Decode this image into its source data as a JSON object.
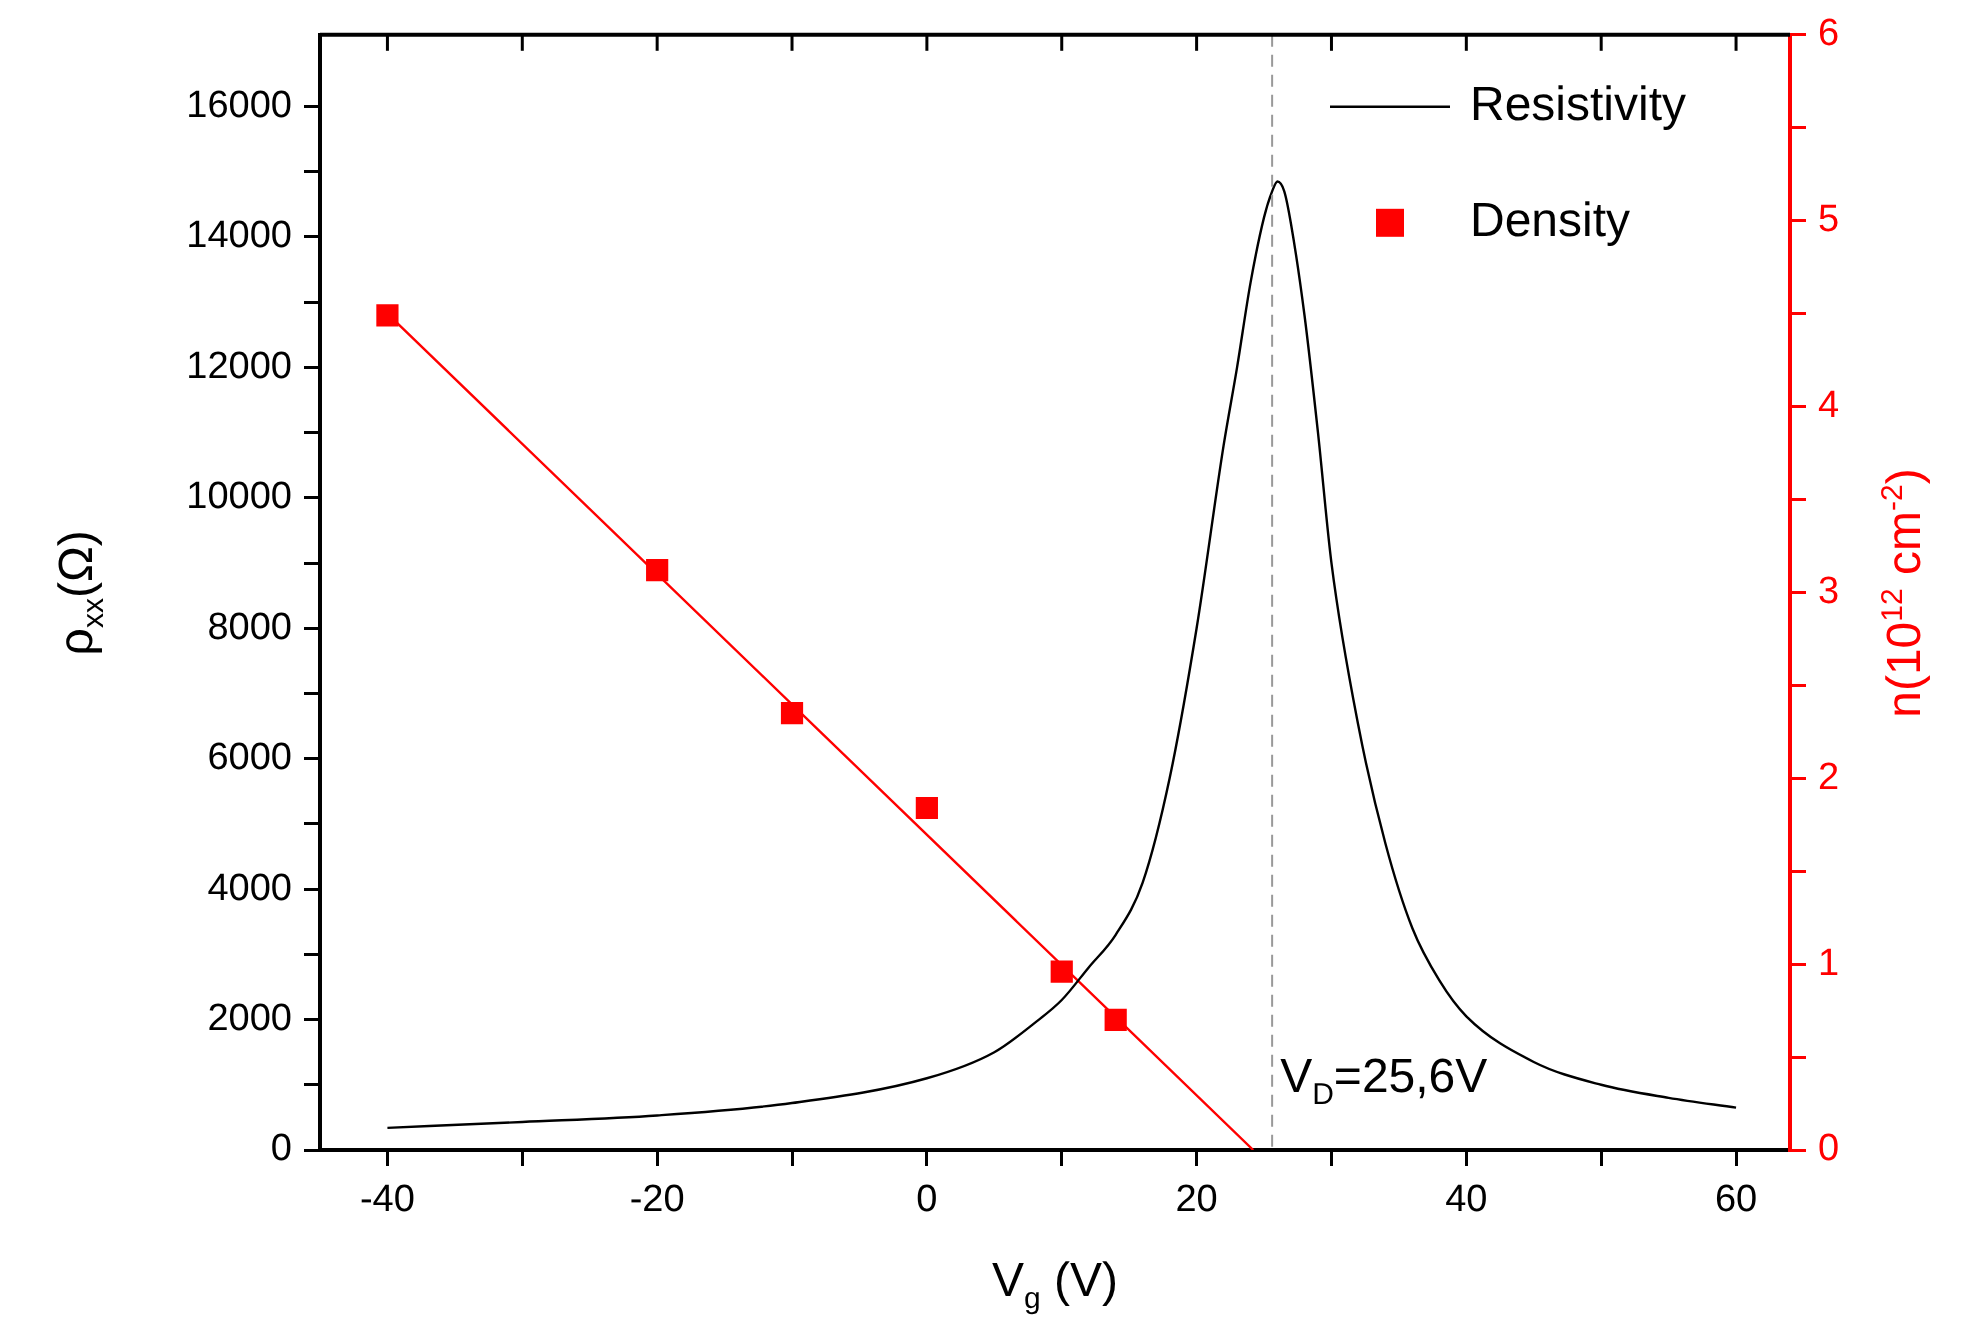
{
  "chart_data": {
    "type": "line",
    "xlabel": "V$_{g}$ (V)",
    "ylabel": "ρ$_{xx}$(Ω)",
    "y2label": "n(10$^{12}$ cm$^{-2}$)",
    "xlim": [
      -45,
      64
    ],
    "ylim": [
      0,
      17100
    ],
    "y2lim": [
      0,
      6
    ],
    "xticks": [
      -40,
      {
        "value": -30,
        "label": null
      },
      -20,
      {
        "value": -10,
        "label": null
      },
      0,
      {
        "value": 10,
        "label": null
      },
      20,
      {
        "value": 30,
        "label": null
      },
      40,
      {
        "value": 50,
        "label": null
      },
      60
    ],
    "yticks": [
      0,
      {
        "value": 1000,
        "label": null
      },
      2000,
      {
        "value": 3000,
        "label": null
      },
      4000,
      {
        "value": 5000,
        "label": null
      },
      6000,
      {
        "value": 7000,
        "label": null
      },
      8000,
      {
        "value": 9000,
        "label": null
      },
      10000,
      {
        "value": 11000,
        "label": null
      },
      12000,
      {
        "value": 13000,
        "label": null
      },
      14000,
      {
        "value": 15000,
        "label": null
      },
      16000
    ],
    "y2ticks": [
      0,
      {
        "value": 0.5,
        "label": null
      },
      1,
      {
        "value": 1.5,
        "label": null
      },
      2,
      {
        "value": 2.5,
        "label": null
      },
      3,
      {
        "value": 3.5,
        "label": null
      },
      4,
      {
        "value": 4.5,
        "label": null
      },
      5,
      {
        "value": 5.5,
        "label": null
      },
      6
    ],
    "grid": false,
    "legend": "top right",
    "ref_lines": [
      {
        "axis": "x",
        "value": 25.6,
        "label": "V$_{D}$=25,6V",
        "color": "#999999",
        "line_style": "dashed"
      }
    ],
    "series": [
      {
        "name": "Resistivity",
        "type": "line",
        "color": "#000000",
        "marker": "none",
        "x": [
          -40,
          -30,
          -20,
          -10,
          0,
          5,
          8,
          10,
          12,
          14,
          16,
          18,
          20,
          22,
          23,
          24,
          25,
          25.6,
          26,
          26.5,
          27,
          28,
          29,
          30,
          32,
          34,
          36,
          38,
          40,
          45,
          50,
          55,
          60
        ],
        "values": [
          340,
          430,
          530,
          720,
          1100,
          1500,
          1950,
          2300,
          2800,
          3300,
          4100,
          5700,
          8000,
          10800,
          12000,
          13300,
          14300,
          14700,
          14850,
          14700,
          14200,
          12800,
          11000,
          9000,
          6500,
          4700,
          3400,
          2600,
          2050,
          1350,
          1000,
          800,
          650
        ]
      },
      {
        "name": "Density",
        "type": "scatter",
        "axis": "y2",
        "color": "#ff0000",
        "marker": "square",
        "x": [
          -40,
          -20,
          -10,
          0,
          10,
          14
        ],
        "values": [
          4.49,
          3.12,
          2.35,
          1.84,
          0.96,
          0.7
        ]
      },
      {
        "type": "line",
        "axis": "y2",
        "color": "#ff0000",
        "marker": "none",
        "x": [
          -40,
          24.2
        ],
        "values": [
          4.5,
          0
        ]
      }
    ]
  }
}
